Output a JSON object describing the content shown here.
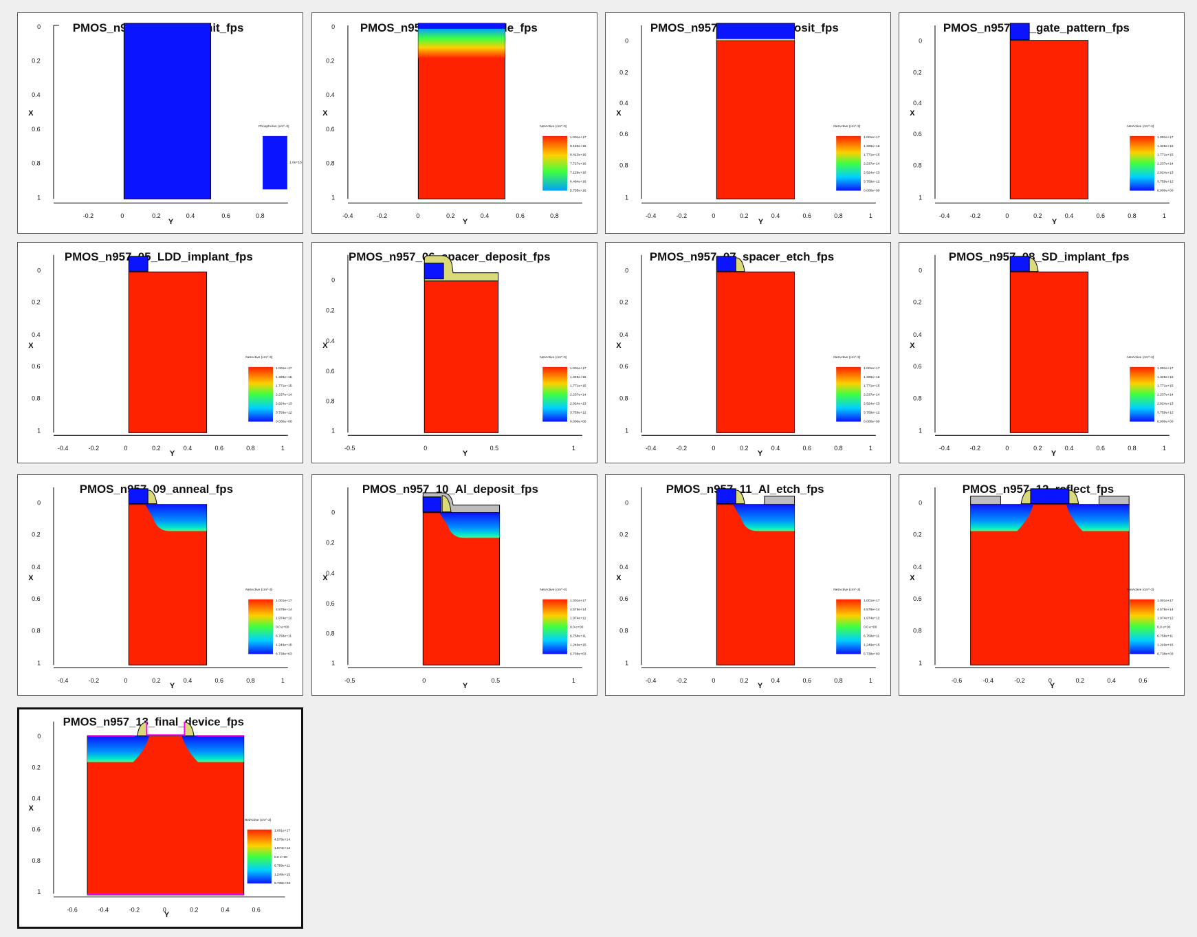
{
  "colors": {
    "substrate": "#ff2200",
    "poly": "#0a14ff",
    "spacer": "#dada78",
    "metal": "#bdbdbd",
    "background": "#efefef",
    "panel": "#ffffff"
  },
  "common": {
    "x_label": "X",
    "y_label": "Y",
    "x_ticks": [
      "0",
      "0.2",
      "0.4",
      "0.6",
      "0.8",
      "1"
    ],
    "legend_title": "NetActive (cm^-3)"
  },
  "panels": [
    {
      "title": "PMOS_n957_01_wafer_init_fps",
      "y_ticks": [
        "-0.2",
        "0",
        "0.2",
        "0.4",
        "0.6",
        "0.8"
      ],
      "legend_title": "Phosphorus (cm^-3)",
      "legend": [
        "1.0e+15"
      ]
    },
    {
      "title": "PMOS_n957_02_gate_oxide_fps",
      "y_ticks": [
        "-0.4",
        "-0.2",
        "0",
        "0.2",
        "0.4",
        "0.6",
        "0.8"
      ],
      "legend": [
        "1.001e+17",
        "9.183e+16",
        "8.413e+16",
        "7.727e+16",
        "7.128e+16",
        "6.484e+16",
        "5.755e+16"
      ]
    },
    {
      "title": "PMOS_n957_03_poly_deposit_fps",
      "y_ticks": [
        "-0.4",
        "-0.2",
        "0",
        "0.2",
        "0.4",
        "0.6",
        "0.8",
        "1"
      ],
      "legend": [
        "1.001e+17",
        "1.329e+16",
        "1.771e+15",
        "2.237e+14",
        "2.924e+13",
        "3.759e+12",
        "0.000e+00"
      ]
    },
    {
      "title": "PMOS_n957_04_gate_pattern_fps",
      "y_ticks": [
        "-0.4",
        "-0.2",
        "0",
        "0.2",
        "0.4",
        "0.6",
        "0.8",
        "1"
      ],
      "legend": [
        "1.001e+17",
        "1.329e+16",
        "1.771e+15",
        "2.237e+14",
        "2.924e+13",
        "3.759e+12",
        "0.000e+00"
      ]
    },
    {
      "title": "PMOS_n957_05_LDD_implant_fps",
      "y_ticks": [
        "-0.4",
        "-0.2",
        "0",
        "0.2",
        "0.4",
        "0.6",
        "0.8",
        "1"
      ],
      "legend": [
        "1.001e+17",
        "1.329e+16",
        "1.771e+15",
        "2.237e+14",
        "2.924e+13",
        "3.759e+12",
        "0.000e+00"
      ]
    },
    {
      "title": "PMOS_n957_06_spacer_deposit_fps",
      "y_ticks": [
        "-0.5",
        "0",
        "0.5",
        "1"
      ],
      "legend": [
        "1.001e+17",
        "1.329e+16",
        "1.771e+15",
        "2.237e+14",
        "2.924e+13",
        "3.759e+12",
        "0.000e+00"
      ]
    },
    {
      "title": "PMOS_n957_07_spacer_etch_fps",
      "y_ticks": [
        "-0.4",
        "-0.2",
        "0",
        "0.2",
        "0.4",
        "0.6",
        "0.8",
        "1"
      ],
      "legend": [
        "1.001e+17",
        "1.329e+16",
        "1.771e+15",
        "2.237e+14",
        "2.924e+13",
        "3.759e+12",
        "0.000e+00"
      ]
    },
    {
      "title": "PMOS_n957_08_SD_implant_fps",
      "y_ticks": [
        "-0.4",
        "-0.2",
        "0",
        "0.2",
        "0.4",
        "0.6",
        "0.8",
        "1"
      ],
      "legend": [
        "1.001e+17",
        "1.329e+16",
        "1.771e+15",
        "2.237e+14",
        "2.924e+13",
        "3.759e+12",
        "0.000e+00"
      ]
    },
    {
      "title": "PMOS_n957_09_anneal_fps",
      "y_ticks": [
        "-0.4",
        "-0.2",
        "0",
        "0.2",
        "0.4",
        "0.6",
        "0.8",
        "1"
      ],
      "legend": [
        "1.001e+17",
        "4.578e+14",
        "1.974e+12",
        "0.0 e+00",
        "6.758e+11",
        "1.249e+15",
        "6.738e+03"
      ]
    },
    {
      "title": "PMOS_n957_10_Al_deposit_fps",
      "y_ticks": [
        "-0.5",
        "0",
        "0.5",
        "1"
      ],
      "legend": [
        "1.001e+17",
        "4.578e+14",
        "1.974e+12",
        "0.0 e+00",
        "6.758e+11",
        "1.249e+15",
        "6.738e+03"
      ]
    },
    {
      "title": "PMOS_n957_11_Al_etch_fps",
      "y_ticks": [
        "-0.4",
        "-0.2",
        "0",
        "0.2",
        "0.4",
        "0.6",
        "0.8",
        "1"
      ],
      "legend": [
        "1.001e+17",
        "4.578e+14",
        "1.974e+12",
        "0.0 e+00",
        "6.758e+11",
        "1.249e+15",
        "6.738e+03"
      ]
    },
    {
      "title": "PMOS_n957_12_reflect_fps",
      "y_ticks": [
        "-0.6",
        "-0.4",
        "-0.2",
        "0",
        "0.2",
        "0.4",
        "0.6"
      ],
      "legend": [
        "1.001e+17",
        "4.578e+14",
        "1.974e+12",
        "0.0 e+00",
        "6.758e+11",
        "1.249e+15",
        "6.738e+03"
      ]
    },
    {
      "title": "PMOS_n957_13_final_device_fps",
      "y_ticks": [
        "-0.6",
        "-0.4",
        "-0.2",
        "0",
        "0.2",
        "0.4",
        "0.6"
      ],
      "legend": [
        "1.001e+17",
        "4.578e+14",
        "1.974e+12",
        "0.0 e+00",
        "6.758e+11",
        "1.249e+15",
        "6.738e+03"
      ]
    }
  ]
}
